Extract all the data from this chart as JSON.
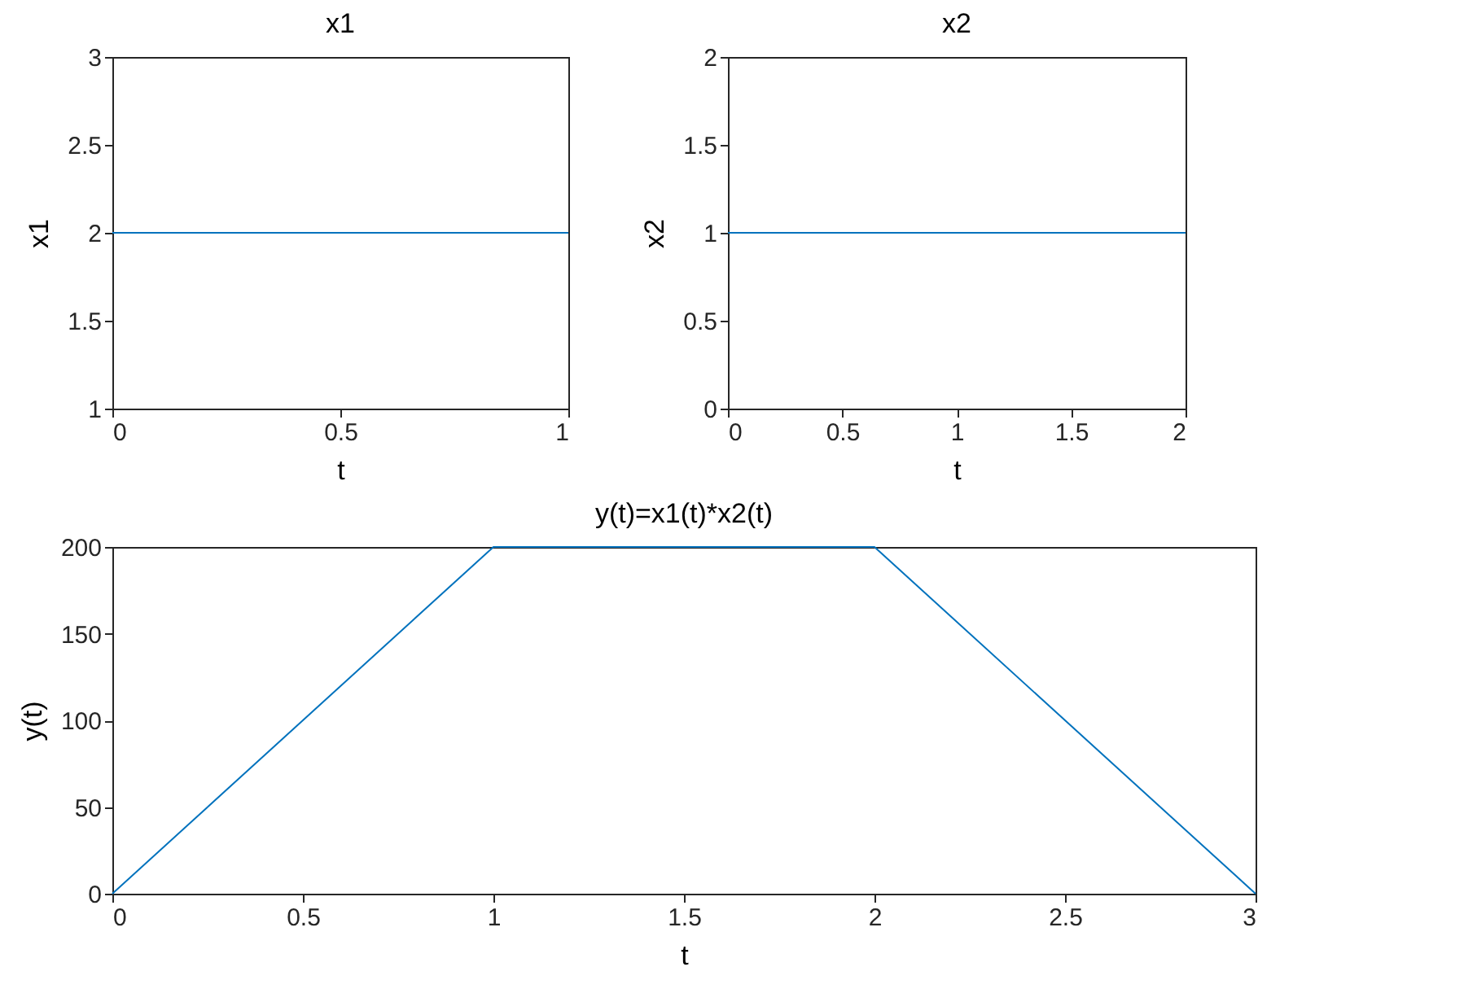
{
  "chart_data": [
    {
      "type": "line",
      "title": "x1",
      "xlabel": "t",
      "ylabel": "x1",
      "xlim": [
        0,
        1
      ],
      "ylim": [
        1,
        3
      ],
      "xticks": [
        0,
        0.5,
        1
      ],
      "yticks": [
        1,
        1.5,
        2,
        2.5,
        3
      ],
      "series": [
        {
          "color": "#0072bd",
          "x": [
            0,
            1
          ],
          "values": [
            2,
            2
          ]
        }
      ]
    },
    {
      "type": "line",
      "title": "x2",
      "xlabel": "t",
      "ylabel": "x2",
      "xlim": [
        0,
        2
      ],
      "ylim": [
        0,
        2
      ],
      "xticks": [
        0,
        0.5,
        1,
        1.5,
        2
      ],
      "yticks": [
        0,
        0.5,
        1,
        1.5,
        2
      ],
      "series": [
        {
          "color": "#0072bd",
          "x": [
            0,
            2
          ],
          "values": [
            1,
            1
          ]
        }
      ]
    },
    {
      "type": "line",
      "title": "y(t)=x1(t)*x2(t)",
      "xlabel": "t",
      "ylabel": "y(t)",
      "xlim": [
        0,
        3
      ],
      "ylim": [
        0,
        200
      ],
      "xticks": [
        0,
        0.5,
        1,
        1.5,
        2,
        2.5,
        3
      ],
      "yticks": [
        0,
        50,
        100,
        150,
        200
      ],
      "series": [
        {
          "color": "#0072bd",
          "x": [
            0,
            1,
            2,
            3
          ],
          "values": [
            0,
            200,
            200,
            0
          ]
        }
      ]
    }
  ]
}
